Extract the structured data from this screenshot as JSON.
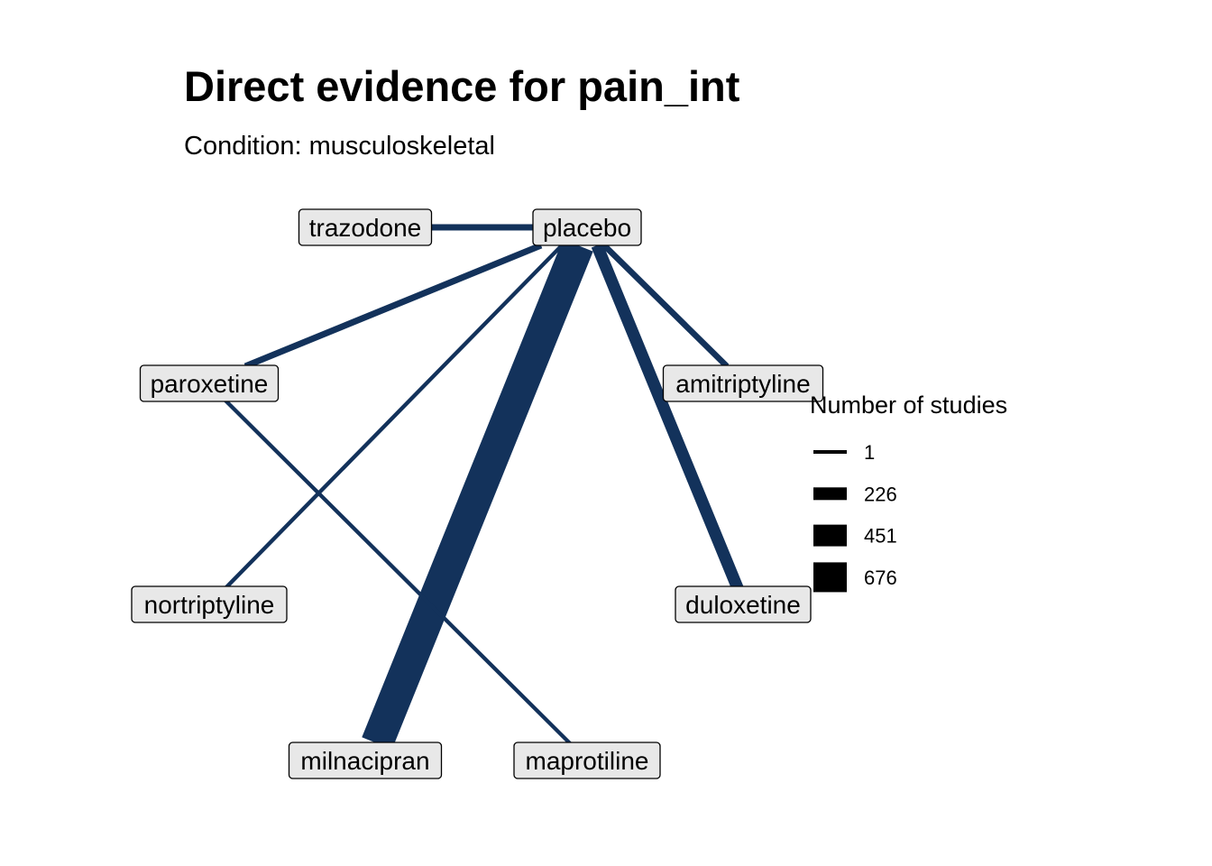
{
  "title": "Direct evidence for pain_int",
  "subtitle": "Condition: musculoskeletal",
  "edge_color": "#13325B",
  "node_fill": "#E8E8E8",
  "nodes": [
    {
      "id": "trazodone",
      "label": "trazodone"
    },
    {
      "id": "placebo",
      "label": "placebo"
    },
    {
      "id": "paroxetine",
      "label": "paroxetine"
    },
    {
      "id": "amitriptyline",
      "label": "amitriptyline"
    },
    {
      "id": "nortriptyline",
      "label": "nortriptyline"
    },
    {
      "id": "duloxetine",
      "label": "duloxetine"
    },
    {
      "id": "milnacipran",
      "label": "milnacipran"
    },
    {
      "id": "maprotiline",
      "label": "maprotiline"
    }
  ],
  "edges": [
    {
      "from": "placebo",
      "to": "trazodone",
      "studies": 90
    },
    {
      "from": "placebo",
      "to": "paroxetine",
      "studies": 90
    },
    {
      "from": "placebo",
      "to": "nortriptyline",
      "studies": 12
    },
    {
      "from": "placebo",
      "to": "milnacipran",
      "studies": 950
    },
    {
      "from": "placebo",
      "to": "amitriptyline",
      "studies": 80
    },
    {
      "from": "placebo",
      "to": "duloxetine",
      "studies": 280
    },
    {
      "from": "paroxetine",
      "to": "maprotiline",
      "studies": 10
    }
  ],
  "legend": {
    "title": "Number of studies",
    "entries": [
      {
        "label": "1",
        "value": 1
      },
      {
        "label": "226",
        "value": 226
      },
      {
        "label": "451",
        "value": 451
      },
      {
        "label": "676",
        "value": 676
      }
    ]
  }
}
